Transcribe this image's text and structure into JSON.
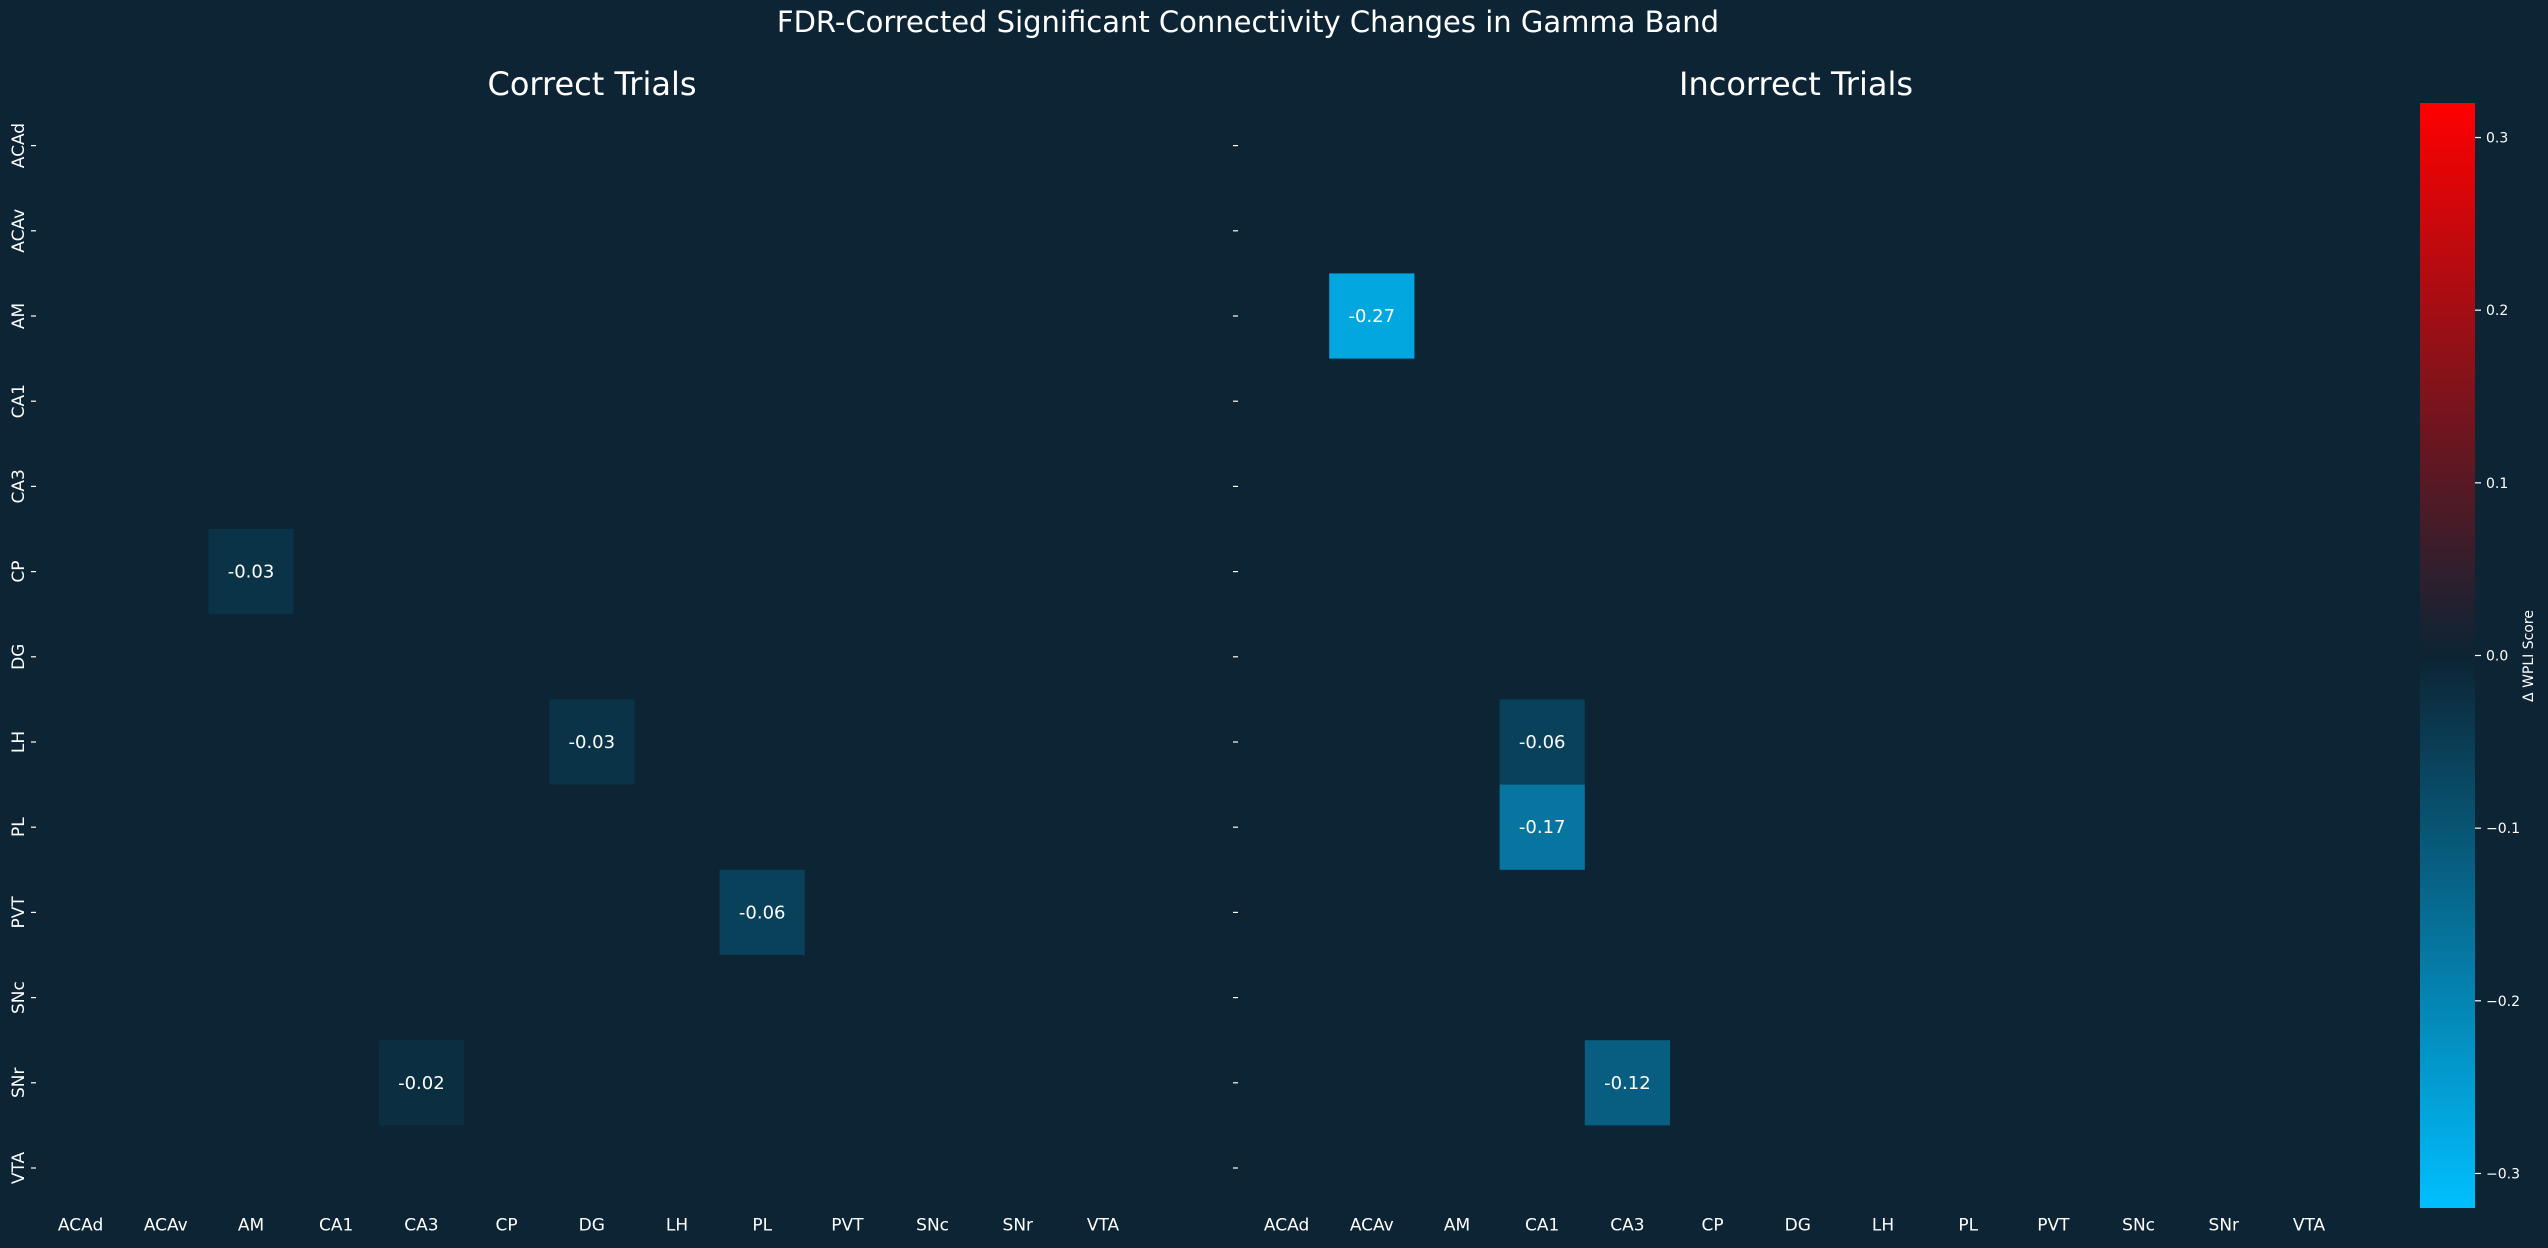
{
  "chart_data": {
    "type": "heatmap",
    "title": "FDR-Corrected Significant Connectivity Changes in Gamma Band",
    "regions": [
      "ACAd",
      "ACAv",
      "AM",
      "CA1",
      "CA3",
      "CP",
      "DG",
      "LH",
      "PL",
      "PVT",
      "SNc",
      "SNr",
      "VTA"
    ],
    "background_color": "#0c2434",
    "panels": [
      {
        "title": "Correct Trials",
        "cells": [
          {
            "row": "CP",
            "col": "AM",
            "value": -0.03,
            "label": "-0.03"
          },
          {
            "row": "LH",
            "col": "DG",
            "value": -0.03,
            "label": "-0.03"
          },
          {
            "row": "PVT",
            "col": "PL",
            "value": -0.06,
            "label": "-0.06"
          },
          {
            "row": "SNr",
            "col": "CA3",
            "value": -0.02,
            "label": "-0.02"
          }
        ]
      },
      {
        "title": "Incorrect Trials",
        "cells": [
          {
            "row": "AM",
            "col": "ACAv",
            "value": -0.27,
            "label": "-0.27"
          },
          {
            "row": "LH",
            "col": "CA1",
            "value": -0.06,
            "label": "-0.06"
          },
          {
            "row": "PL",
            "col": "CA1",
            "value": -0.17,
            "label": "-0.17"
          },
          {
            "row": "SNr",
            "col": "CA3",
            "value": -0.12,
            "label": "-0.12"
          }
        ]
      }
    ],
    "colorbar": {
      "label": "Δ WPLI Score",
      "vmin": -0.32,
      "vmax": 0.32,
      "ticks": [
        0.3,
        0.2,
        0.1,
        0.0,
        -0.1,
        -0.2,
        -0.3
      ],
      "tick_labels": [
        "0.3",
        "0.2",
        "0.1",
        "0.0",
        "−0.1",
        "−0.2",
        "−0.3"
      ],
      "colors": {
        "negative_end": "#00bfff",
        "center": "#0c2434",
        "positive_end": "#ff0000"
      }
    }
  }
}
